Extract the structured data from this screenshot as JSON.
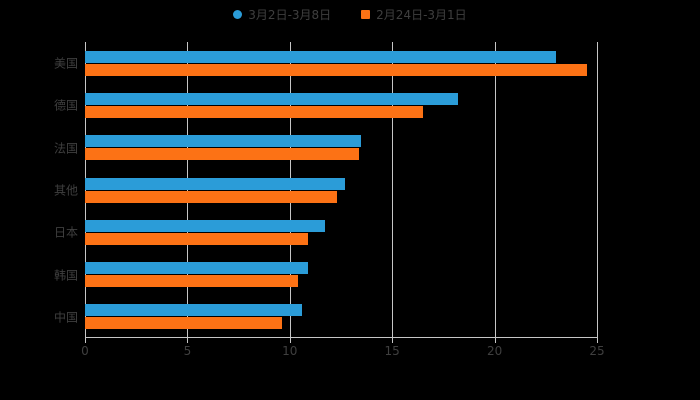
{
  "colors": {
    "background": "#000000",
    "grid": "#c6c6c6",
    "axis": "#c6c6c6",
    "text": "#3f3f3f",
    "series_blue": "#2B9CD8",
    "series_orange": "#FC7215"
  },
  "legend": {
    "items": [
      {
        "label": "3月2日-3月8日",
        "color": "#2B9CD8",
        "marker": "circle"
      },
      {
        "label": "2月24日-3月1日",
        "color": "#FC7215",
        "marker": "square"
      }
    ]
  },
  "chart_data": {
    "type": "bar",
    "orientation": "horizontal",
    "title": "",
    "xlabel": "",
    "ylabel": "",
    "categories": [
      "美国",
      "德国",
      "法国",
      "其他",
      "日本",
      "韩国",
      "中国"
    ],
    "series": [
      {
        "name": "3月2日-3月8日",
        "color": "#2B9CD8",
        "values": [
          23.0,
          18.2,
          13.5,
          12.7,
          11.7,
          10.9,
          10.6
        ]
      },
      {
        "name": "2月24日-3月1日",
        "color": "#FC7215",
        "values": [
          24.5,
          16.5,
          13.4,
          12.3,
          10.9,
          10.4,
          9.6
        ]
      }
    ],
    "xlim": [
      0,
      25
    ],
    "xticks": [
      0,
      5,
      10,
      15,
      20,
      25
    ],
    "grid": true,
    "legend_position": "top-center"
  }
}
